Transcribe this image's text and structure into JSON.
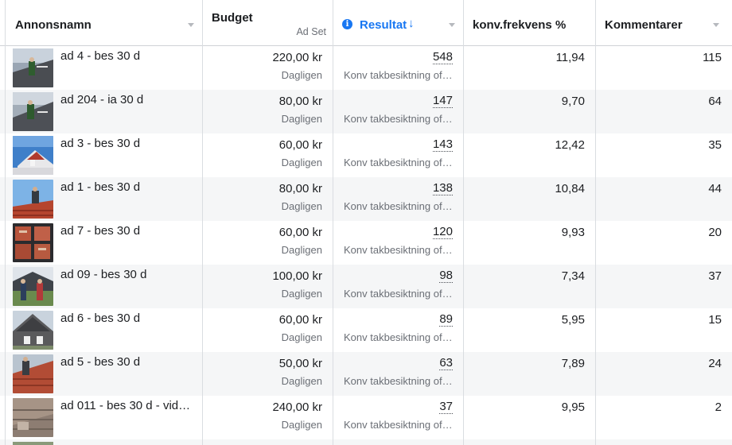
{
  "columns": {
    "name": "Annonsnamn",
    "budget": "Budget",
    "budget_sub": "Ad Set",
    "result": "Resultat",
    "result_sort": "↓",
    "info_icon": "i",
    "conv_freq": "konv.frekvens %",
    "comments": "Kommentarer"
  },
  "colors": {
    "accent": "#1877f2",
    "row_alt": "#f5f6f7",
    "muted": "#6b6f76"
  },
  "rows": [
    {
      "name": "ad 4 - bes 30 d",
      "budget": "220,00 kr",
      "budget_type": "Dagligen",
      "result": "548",
      "result_type": "Konv takbesiktning of…",
      "conv_freq": "11,94",
      "comments": "115"
    },
    {
      "name": "ad 204 - ia 30 d",
      "budget": "80,00 kr",
      "budget_type": "Dagligen",
      "result": "147",
      "result_type": "Konv takbesiktning of…",
      "conv_freq": "9,70",
      "comments": "64"
    },
    {
      "name": "ad 3 - bes 30 d",
      "budget": "60,00 kr",
      "budget_type": "Dagligen",
      "result": "143",
      "result_type": "Konv takbesiktning of…",
      "conv_freq": "12,42",
      "comments": "35"
    },
    {
      "name": "ad 1 - bes 30 d",
      "budget": "80,00 kr",
      "budget_type": "Dagligen",
      "result": "138",
      "result_type": "Konv takbesiktning of…",
      "conv_freq": "10,84",
      "comments": "44"
    },
    {
      "name": "ad 7 - bes 30 d",
      "budget": "60,00 kr",
      "budget_type": "Dagligen",
      "result": "120",
      "result_type": "Konv takbesiktning of…",
      "conv_freq": "9,93",
      "comments": "20"
    },
    {
      "name": "ad 09 - bes 30 d",
      "budget": "100,00 kr",
      "budget_type": "Dagligen",
      "result": "98",
      "result_type": "Konv takbesiktning of…",
      "conv_freq": "7,34",
      "comments": "37"
    },
    {
      "name": "ad 6 - bes 30 d",
      "budget": "60,00 kr",
      "budget_type": "Dagligen",
      "result": "89",
      "result_type": "Konv takbesiktning of…",
      "conv_freq": "5,95",
      "comments": "15"
    },
    {
      "name": "ad 5 - bes 30 d",
      "budget": "50,00 kr",
      "budget_type": "Dagligen",
      "result": "63",
      "result_type": "Konv takbesiktning of…",
      "conv_freq": "7,89",
      "comments": "24"
    },
    {
      "name": "ad 011 - bes 30 d - vid…",
      "budget": "240,00 kr",
      "budget_type": "Dagligen",
      "result": "37",
      "result_type": "Konv takbesiktning of…",
      "conv_freq": "9,95",
      "comments": "2"
    }
  ]
}
